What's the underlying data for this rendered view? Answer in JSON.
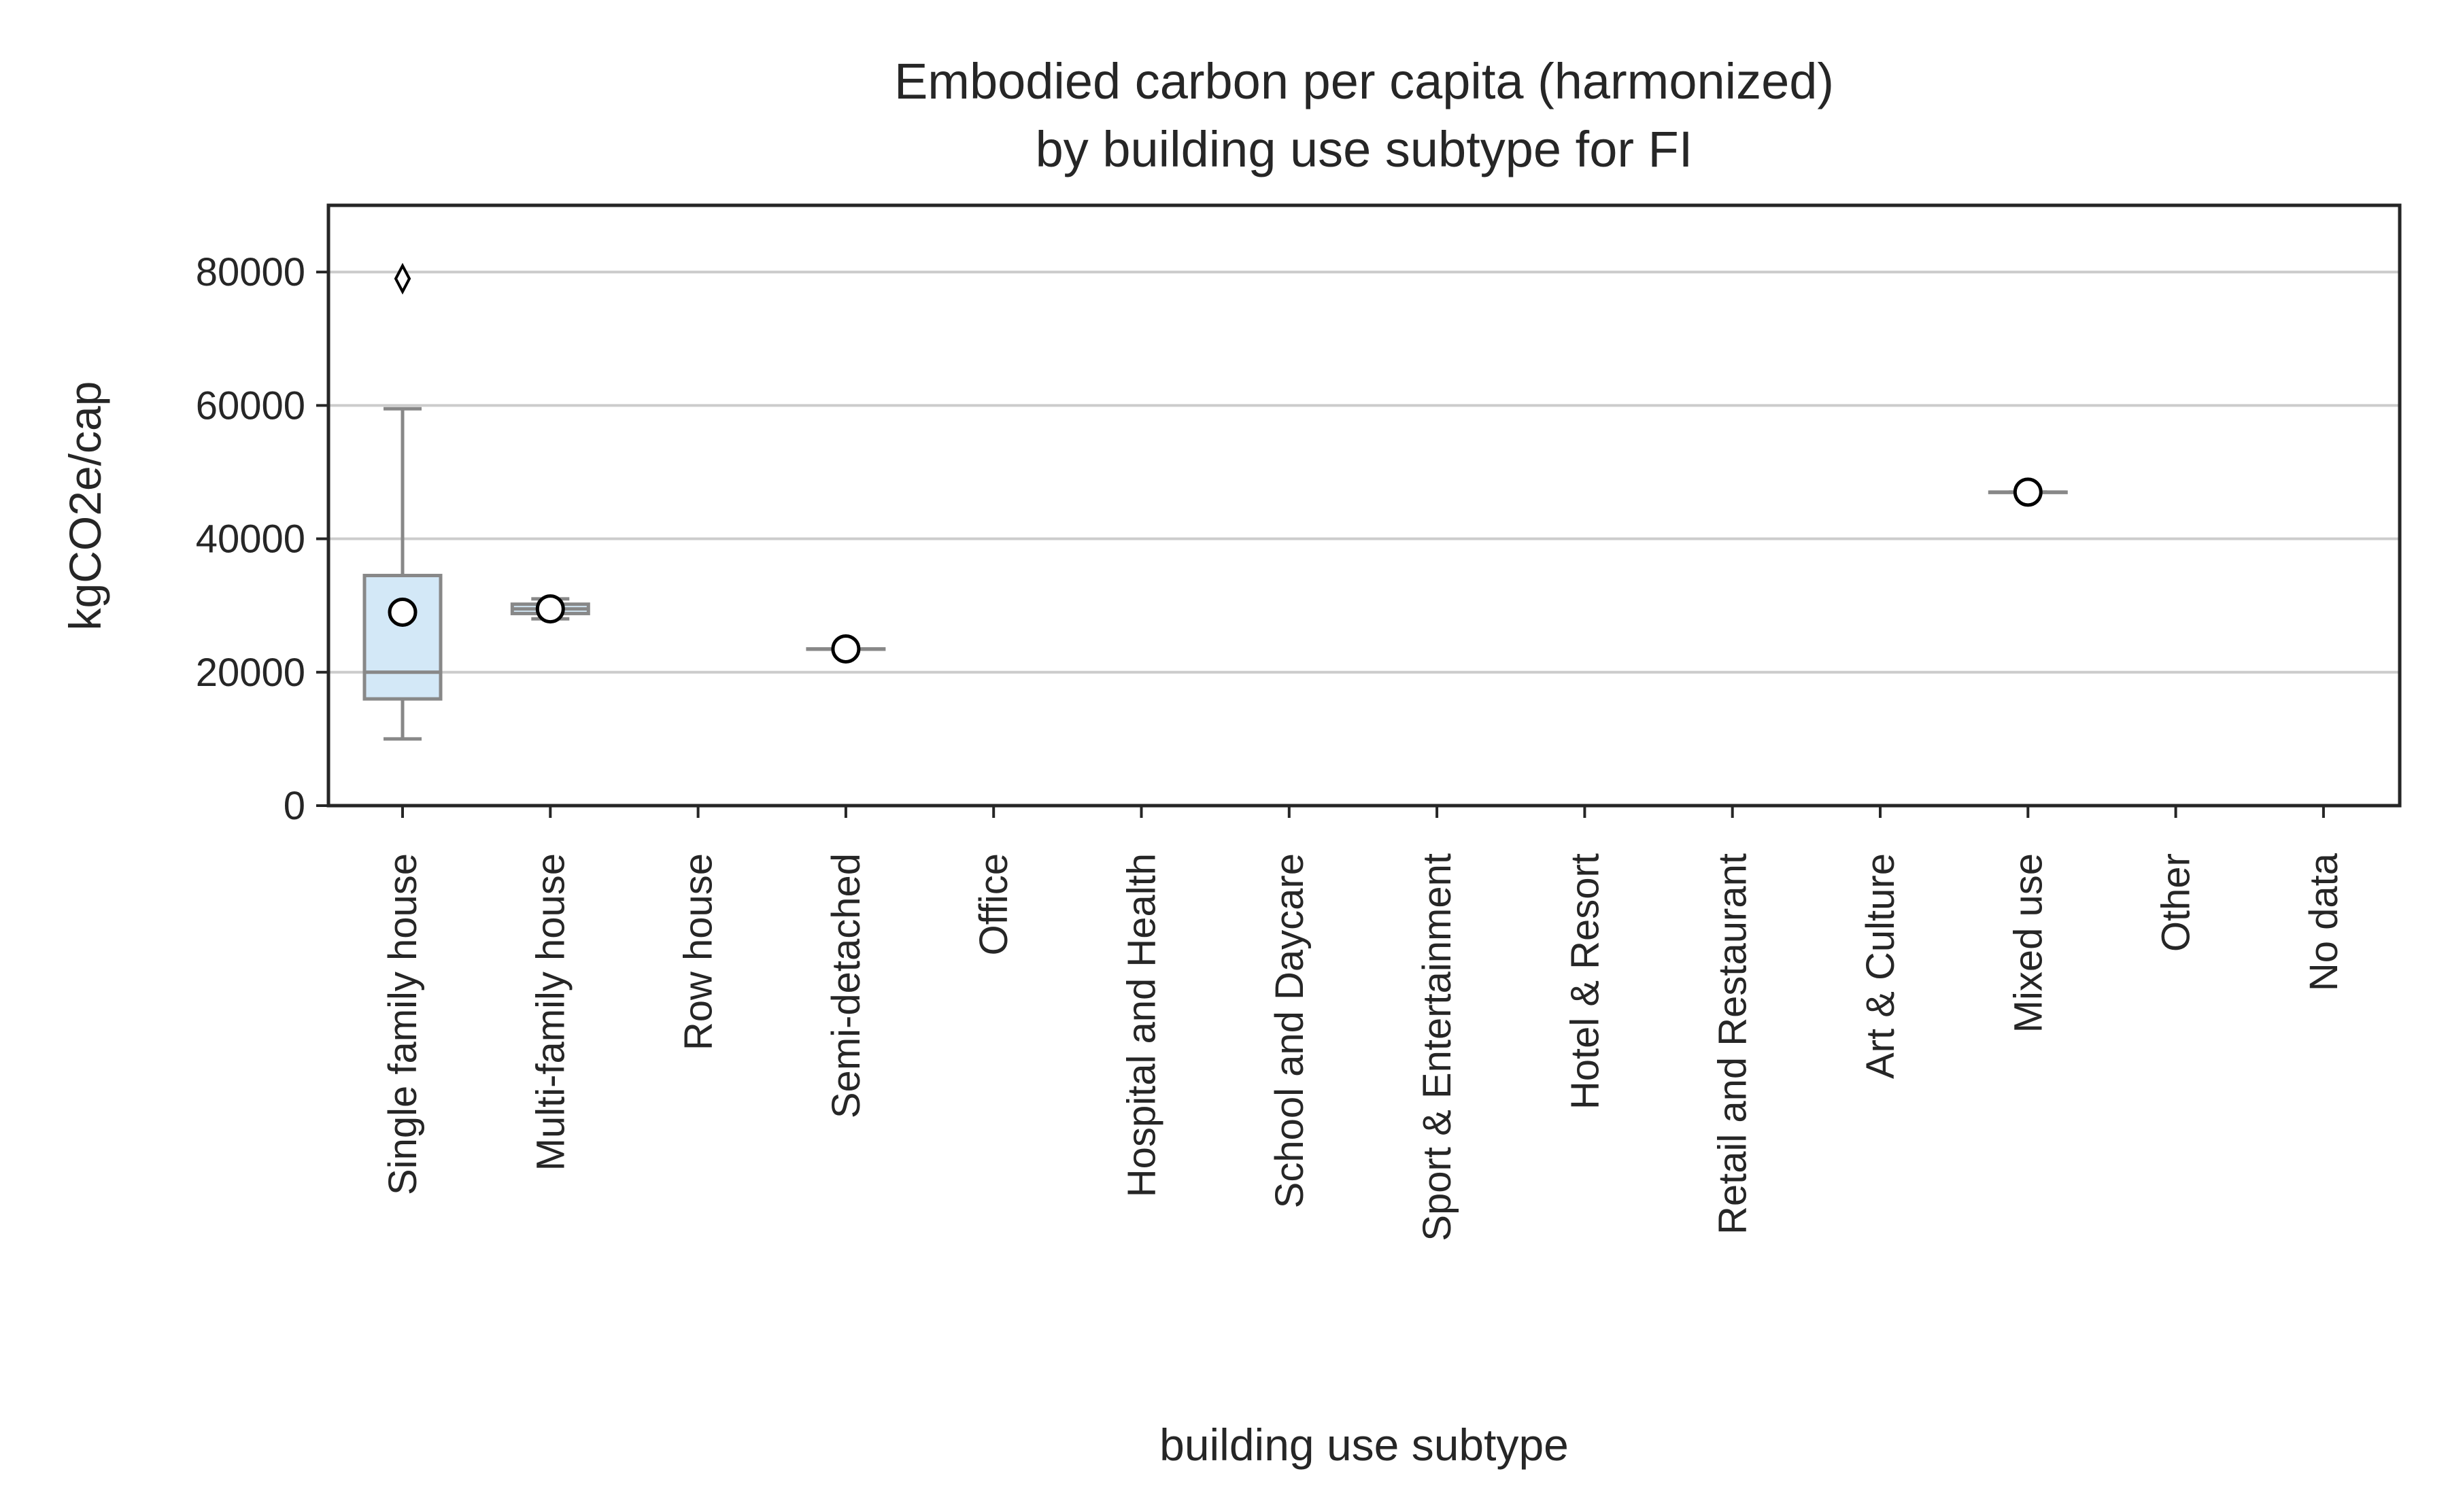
{
  "chart_data": {
    "type": "box",
    "title_lines": [
      "Embodied carbon per capita (harmonized)",
      "by building use subtype for FI"
    ],
    "xlabel": "building use subtype",
    "ylabel": "kgCO2e/cap",
    "ylim": [
      0,
      90000
    ],
    "yticks": [
      0,
      20000,
      40000,
      60000,
      80000
    ],
    "grid": "horizontal",
    "categories": [
      "Single family house",
      "Multi-family house",
      "Row house",
      "Semi-detached",
      "Office",
      "Hospital and Health",
      "School and Daycare",
      "Sport & Entertainment",
      "Hotel & Resort",
      "Retail and Restaurant",
      "Art & Culture",
      "Mixed use",
      "Other",
      "No data"
    ],
    "boxes": [
      {
        "category": "Single family house",
        "whisker_low": 10000,
        "q1": 16000,
        "median": 20000,
        "q3": 34500,
        "whisker_high": 59500,
        "mean": 29000,
        "outliers": [
          79000
        ]
      },
      {
        "category": "Multi-family house",
        "whisker_low": 28000,
        "q1": 28800,
        "median": 29500,
        "q3": 30200,
        "whisker_high": 31000,
        "mean": 29500,
        "outliers": []
      },
      {
        "category": "Semi-detached",
        "whisker_low": 23500,
        "q1": 23500,
        "median": 23500,
        "q3": 23500,
        "whisker_high": 23500,
        "mean": 23500,
        "outliers": []
      },
      {
        "category": "Mixed use",
        "whisker_low": 47000,
        "q1": 47000,
        "median": 47000,
        "q3": 47000,
        "whisker_high": 47000,
        "mean": 47000,
        "outliers": []
      }
    ],
    "colors": {
      "box_fill": "#d3e8f7",
      "box_line": "#888888",
      "grid": "#cccccc",
      "frame": "#262626",
      "mean_marker_fill": "#ffffff",
      "mean_marker_edge": "#000000"
    }
  }
}
